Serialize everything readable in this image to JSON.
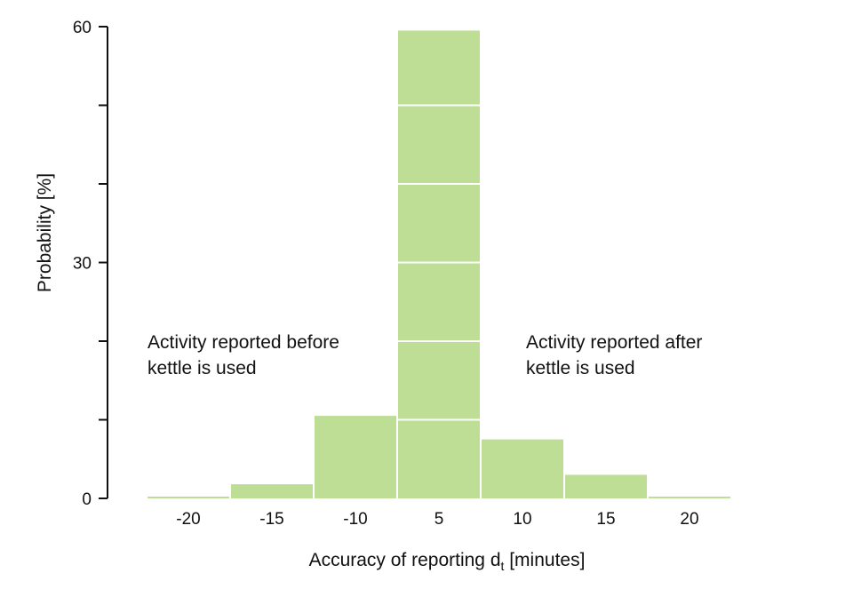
{
  "chart_data": {
    "type": "bar",
    "categories": [
      "-20",
      "-15",
      "-10",
      "5",
      "10",
      "15",
      "20"
    ],
    "values": [
      0.2,
      1.8,
      10.5,
      59.5,
      7.5,
      3.0,
      0.2
    ],
    "ylabel": "Probability [%]",
    "xlabel": {
      "main": "Accuracy of reporting d",
      "subscript": "t",
      "suffix": " [minutes]"
    },
    "ylim": [
      0,
      60
    ],
    "yticks": [
      "0",
      "30",
      "60"
    ],
    "ytick_values": [
      0,
      30,
      60
    ],
    "minor_ytick_values": [
      10,
      20,
      40,
      50
    ],
    "grid_lines_on_bars": [
      10,
      20,
      30,
      40,
      50
    ],
    "bar_color": "#bedd95",
    "annotations": {
      "before": [
        "Activity reported before",
        "kettle is used"
      ],
      "after": [
        "Activity reported after",
        "kettle is used"
      ]
    }
  }
}
